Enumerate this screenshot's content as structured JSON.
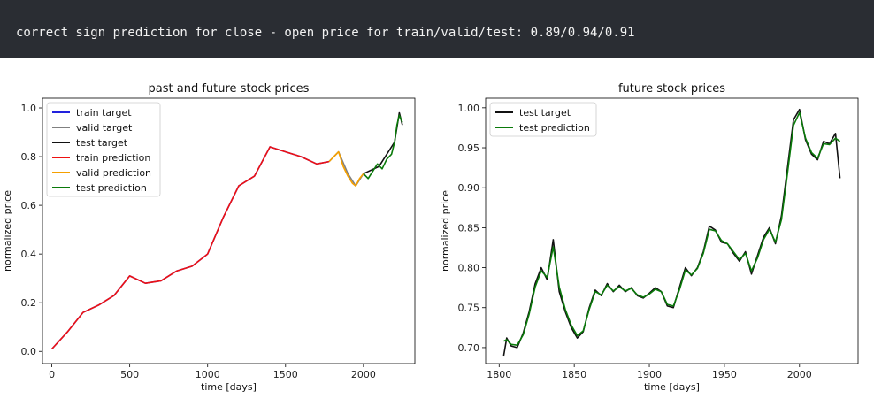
{
  "output": {
    "text": "correct sign prediction for close - open price for train/valid/test: 0.89/0.94/0.91"
  },
  "colors": {
    "console_bg": "#2a2d33",
    "train_target": "#2222dd",
    "valid_target": "#808080",
    "test_target": "#111111",
    "train_prediction": "#ee1111",
    "valid_prediction": "#f5a000",
    "test_prediction": "#0a7a0a"
  },
  "chart_data": [
    {
      "type": "line",
      "title": "past and future stock prices",
      "xlabel": "time [days]",
      "ylabel": "normalized price",
      "xlim": [
        -60,
        2330
      ],
      "ylim": [
        -0.05,
        1.04
      ],
      "xticks": [
        0,
        500,
        1000,
        1500,
        2000
      ],
      "xtick_labels": [
        "0",
        "500",
        "1000",
        "1500",
        "2000"
      ],
      "yticks": [
        0.0,
        0.2,
        0.4,
        0.6,
        0.8,
        1.0
      ],
      "ytick_labels": [
        "0.0",
        "0.2",
        "0.4",
        "0.6",
        "0.8",
        "1.0"
      ],
      "grid": false,
      "legend_position": "upper-left",
      "legend": [
        "train target",
        "valid target",
        "test target",
        "train prediction",
        "valid prediction",
        "test prediction"
      ],
      "series": [
        {
          "name": "train target",
          "color": "#2222dd",
          "x": [
            0,
            100,
            200,
            300,
            400,
            500,
            600,
            700,
            800,
            900,
            1000,
            1100,
            1200,
            1300,
            1400,
            1500,
            1600,
            1700,
            1780
          ],
          "y": [
            0.01,
            0.08,
            0.16,
            0.19,
            0.23,
            0.31,
            0.28,
            0.29,
            0.33,
            0.35,
            0.4,
            0.55,
            0.68,
            0.72,
            0.84,
            0.82,
            0.8,
            0.77,
            0.78
          ]
        },
        {
          "name": "valid target",
          "color": "#808080",
          "x": [
            1780,
            1840,
            1900,
            1950,
            2000
          ],
          "y": [
            0.78,
            0.82,
            0.73,
            0.68,
            0.73
          ]
        },
        {
          "name": "test target",
          "color": "#111111",
          "x": [
            2000,
            2100,
            2200,
            2230,
            2250
          ],
          "y": [
            0.73,
            0.76,
            0.86,
            0.98,
            0.93
          ]
        },
        {
          "name": "train prediction",
          "color": "#ee1111",
          "x": [
            0,
            100,
            200,
            300,
            400,
            500,
            600,
            700,
            800,
            900,
            1000,
            1100,
            1200,
            1300,
            1400,
            1500,
            1600,
            1700,
            1780
          ],
          "y": [
            0.01,
            0.08,
            0.16,
            0.19,
            0.23,
            0.31,
            0.28,
            0.29,
            0.33,
            0.35,
            0.4,
            0.55,
            0.68,
            0.72,
            0.84,
            0.82,
            0.8,
            0.77,
            0.78
          ]
        },
        {
          "name": "valid prediction",
          "color": "#f5a000",
          "x": [
            1780,
            1810,
            1840,
            1870,
            1900,
            1930,
            1950,
            1975,
            2000
          ],
          "y": [
            0.78,
            0.8,
            0.82,
            0.76,
            0.72,
            0.69,
            0.68,
            0.71,
            0.73
          ]
        },
        {
          "name": "test prediction",
          "color": "#0a7a0a",
          "x": [
            2000,
            2030,
            2060,
            2090,
            2120,
            2150,
            2180,
            2200,
            2215,
            2230,
            2250
          ],
          "y": [
            0.73,
            0.71,
            0.74,
            0.77,
            0.75,
            0.79,
            0.81,
            0.86,
            0.93,
            0.97,
            0.94
          ]
        }
      ]
    },
    {
      "type": "line",
      "title": "future stock prices",
      "xlabel": "time [days]",
      "ylabel": "normalized price",
      "xlim": [
        1791,
        2039
      ],
      "ylim": [
        0.68,
        1.012
      ],
      "xticks": [
        1800,
        1850,
        1900,
        1950,
        2000
      ],
      "xtick_labels": [
        "1800",
        "1850",
        "1900",
        "1950",
        "2000"
      ],
      "yticks": [
        0.7,
        0.75,
        0.8,
        0.85,
        0.9,
        0.95,
        1.0
      ],
      "ytick_labels": [
        "0.70",
        "0.75",
        "0.80",
        "0.85",
        "0.90",
        "0.95",
        "1.00"
      ],
      "grid": false,
      "legend_position": "upper-left",
      "legend": [
        "test target",
        "test prediction"
      ],
      "series": [
        {
          "name": "test target",
          "color": "#111111",
          "x": [
            1803,
            1805,
            1808,
            1812,
            1816,
            1820,
            1824,
            1828,
            1832,
            1836,
            1840,
            1844,
            1848,
            1852,
            1856,
            1860,
            1864,
            1868,
            1872,
            1876,
            1880,
            1884,
            1888,
            1892,
            1896,
            1900,
            1904,
            1908,
            1912,
            1916,
            1920,
            1924,
            1928,
            1932,
            1936,
            1940,
            1944,
            1948,
            1952,
            1956,
            1960,
            1964,
            1968,
            1972,
            1976,
            1980,
            1984,
            1988,
            1992,
            1996,
            2000,
            2004,
            2008,
            2012,
            2016,
            2020,
            2024,
            2027
          ],
          "y": [
            0.69,
            0.712,
            0.702,
            0.7,
            0.718,
            0.745,
            0.78,
            0.8,
            0.785,
            0.835,
            0.77,
            0.745,
            0.725,
            0.712,
            0.72,
            0.75,
            0.772,
            0.765,
            0.78,
            0.77,
            0.778,
            0.77,
            0.775,
            0.765,
            0.762,
            0.768,
            0.775,
            0.77,
            0.752,
            0.75,
            0.775,
            0.8,
            0.79,
            0.8,
            0.82,
            0.852,
            0.847,
            0.832,
            0.83,
            0.818,
            0.808,
            0.82,
            0.792,
            0.815,
            0.838,
            0.85,
            0.83,
            0.865,
            0.925,
            0.985,
            0.998,
            0.96,
            0.942,
            0.935,
            0.958,
            0.955,
            0.968,
            0.912
          ]
        },
        {
          "name": "test prediction",
          "color": "#0a7a0a",
          "x": [
            1803,
            1805,
            1808,
            1812,
            1816,
            1820,
            1824,
            1828,
            1832,
            1836,
            1840,
            1844,
            1848,
            1852,
            1856,
            1860,
            1864,
            1868,
            1872,
            1876,
            1880,
            1884,
            1888,
            1892,
            1896,
            1900,
            1904,
            1908,
            1912,
            1916,
            1920,
            1924,
            1928,
            1932,
            1936,
            1940,
            1944,
            1948,
            1952,
            1956,
            1960,
            1964,
            1968,
            1972,
            1976,
            1980,
            1984,
            1988,
            1992,
            1996,
            2000,
            2004,
            2008,
            2012,
            2016,
            2020,
            2024,
            2027
          ],
          "y": [
            0.708,
            0.71,
            0.704,
            0.703,
            0.716,
            0.742,
            0.776,
            0.796,
            0.788,
            0.826,
            0.776,
            0.748,
            0.728,
            0.715,
            0.721,
            0.748,
            0.77,
            0.766,
            0.778,
            0.771,
            0.776,
            0.771,
            0.774,
            0.766,
            0.763,
            0.767,
            0.773,
            0.77,
            0.754,
            0.752,
            0.772,
            0.797,
            0.791,
            0.799,
            0.818,
            0.848,
            0.846,
            0.834,
            0.83,
            0.82,
            0.81,
            0.818,
            0.796,
            0.812,
            0.835,
            0.848,
            0.832,
            0.86,
            0.918,
            0.978,
            0.994,
            0.962,
            0.944,
            0.937,
            0.955,
            0.954,
            0.962,
            0.958
          ]
        }
      ]
    }
  ]
}
